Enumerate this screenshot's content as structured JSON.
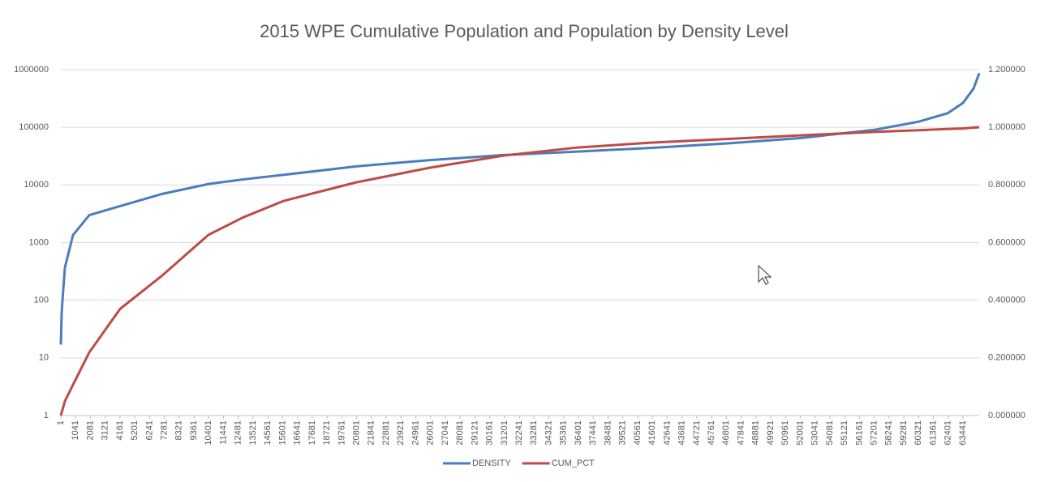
{
  "chart_data": {
    "type": "line",
    "title": "2015 WPE Cumulative Population and Population by Density Level",
    "x": [
      1,
      58,
      115,
      286,
      857,
      1998,
      4166,
      7133,
      10385,
      12838,
      15690,
      20768,
      25959,
      31152,
      36343,
      41592,
      47069,
      51975,
      57167,
      60304,
      62358,
      63442,
      64183,
      64583
    ],
    "series": [
      {
        "name": "DENSITY",
        "color": "#4a7ebb",
        "values": [
          17,
          60,
          100,
          370,
          1350,
          3000,
          4300,
          7000,
          10400,
          12500,
          15000,
          21000,
          27000,
          33000,
          38000,
          44000,
          53000,
          65000,
          90000,
          125000,
          175000,
          265000,
          470000,
          870000
        ]
      },
      {
        "name": "CUM_PCT",
        "color": "#be4b48",
        "axis": "y2",
        "values": [
          0.0,
          0.01,
          0.02,
          0.05,
          0.107,
          0.219,
          0.37,
          0.486,
          0.627,
          0.688,
          0.745,
          0.809,
          0.86,
          0.902,
          0.93,
          0.947,
          0.96,
          0.972,
          0.984,
          0.99,
          0.994,
          0.996,
          0.999,
          1.0
        ]
      }
    ],
    "xlim": [
      1,
      64583
    ],
    "xticks": [
      1,
      1041,
      2081,
      3121,
      4161,
      5201,
      6241,
      7281,
      8321,
      9361,
      10401,
      11441,
      12481,
      13521,
      14561,
      15601,
      16641,
      17681,
      18721,
      19761,
      20801,
      21841,
      22881,
      23921,
      24961,
      26001,
      27041,
      28081,
      29121,
      30161,
      31201,
      32241,
      33281,
      34321,
      35361,
      36401,
      37441,
      38481,
      39521,
      40561,
      41601,
      42641,
      43681,
      44721,
      45761,
      46801,
      47841,
      48881,
      49921,
      50961,
      52001,
      53041,
      54081,
      55121,
      56161,
      57201,
      58241,
      59281,
      60321,
      61361,
      62401,
      63441
    ],
    "ylim": [
      1,
      1000000
    ],
    "yticks": [
      1,
      10,
      100,
      1000,
      10000,
      100000,
      1000000
    ],
    "ylog": true,
    "y2lim": [
      0,
      1.2
    ],
    "y2ticks": [
      {
        "value": 0,
        "label": "0.000000"
      },
      {
        "value": 0.2,
        "label": "0.200000"
      },
      {
        "value": 0.4,
        "label": "0.400000"
      },
      {
        "value": 0.6,
        "label": "0.600000"
      },
      {
        "value": 0.8,
        "label": "0.800000"
      },
      {
        "value": 1.0,
        "label": "1.000000"
      },
      {
        "value": 1.2,
        "label": "1.200000"
      }
    ],
    "grid": true,
    "legend": "bottom"
  }
}
